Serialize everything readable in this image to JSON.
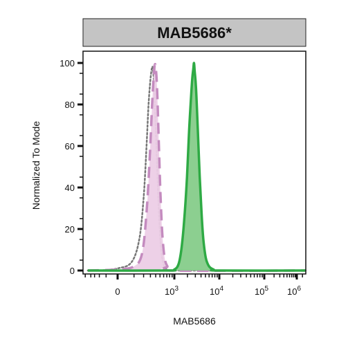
{
  "chart_data": {
    "type": "area",
    "title": "MAB5686*",
    "xlabel": "MAB5686",
    "ylabel": "Normalized To Mode",
    "x_scale": "biexponential",
    "ylim": [
      0,
      100
    ],
    "y_ticks": [
      "0",
      "20",
      "40",
      "60",
      "80",
      "100"
    ],
    "x_ticks": [
      {
        "value": 0,
        "base": "0",
        "exp": ""
      },
      {
        "value": 1000,
        "base": "10",
        "exp": "3"
      },
      {
        "value": 10000,
        "base": "10",
        "exp": "4"
      },
      {
        "value": 100000,
        "base": "10",
        "exp": "5"
      },
      {
        "value": 1000000,
        "base": "10",
        "exp": "6"
      }
    ],
    "series": [
      {
        "style": "dotted-outline",
        "color": "#777777",
        "points": [
          [
            -500,
            0
          ],
          [
            -200,
            0
          ],
          [
            0,
            1
          ],
          [
            80,
            4
          ],
          [
            150,
            15
          ],
          [
            200,
            35
          ],
          [
            240,
            60
          ],
          [
            270,
            80
          ],
          [
            300,
            92
          ],
          [
            330,
            98
          ],
          [
            350,
            96
          ],
          [
            370,
            88
          ],
          [
            400,
            70
          ],
          [
            440,
            45
          ],
          [
            480,
            25
          ],
          [
            530,
            10
          ],
          [
            600,
            3
          ],
          [
            700,
            0.5
          ],
          [
            900,
            0
          ],
          [
            3000000,
            0
          ]
        ]
      },
      {
        "style": "dashed-filled",
        "color": "#c48bbf",
        "fill": "#eccde6",
        "points": [
          [
            -500,
            0
          ],
          [
            0,
            0.5
          ],
          [
            100,
            2
          ],
          [
            180,
            8
          ],
          [
            240,
            28
          ],
          [
            290,
            55
          ],
          [
            330,
            80
          ],
          [
            360,
            94
          ],
          [
            380,
            99
          ],
          [
            400,
            98
          ],
          [
            430,
            88
          ],
          [
            470,
            62
          ],
          [
            510,
            38
          ],
          [
            560,
            18
          ],
          [
            630,
            6
          ],
          [
            720,
            2
          ],
          [
            850,
            0
          ],
          [
            3000000,
            0
          ]
        ]
      },
      {
        "style": "solid-filled",
        "color": "#2eaa44",
        "fill": "#86cc8a",
        "points": [
          [
            -500,
            0
          ],
          [
            700,
            0
          ],
          [
            1000,
            0.5
          ],
          [
            1250,
            3
          ],
          [
            1450,
            10
          ],
          [
            1700,
            25
          ],
          [
            1950,
            45
          ],
          [
            2150,
            65
          ],
          [
            2350,
            80
          ],
          [
            2550,
            92
          ],
          [
            2700,
            97
          ],
          [
            2800,
            100
          ],
          [
            2900,
            96
          ],
          [
            3100,
            88
          ],
          [
            3400,
            68
          ],
          [
            3750,
            45
          ],
          [
            4100,
            28
          ],
          [
            4500,
            15
          ],
          [
            5100,
            6
          ],
          [
            6000,
            2
          ],
          [
            7500,
            0.5
          ],
          [
            10000,
            0
          ],
          [
            3000000,
            0
          ]
        ]
      }
    ]
  }
}
